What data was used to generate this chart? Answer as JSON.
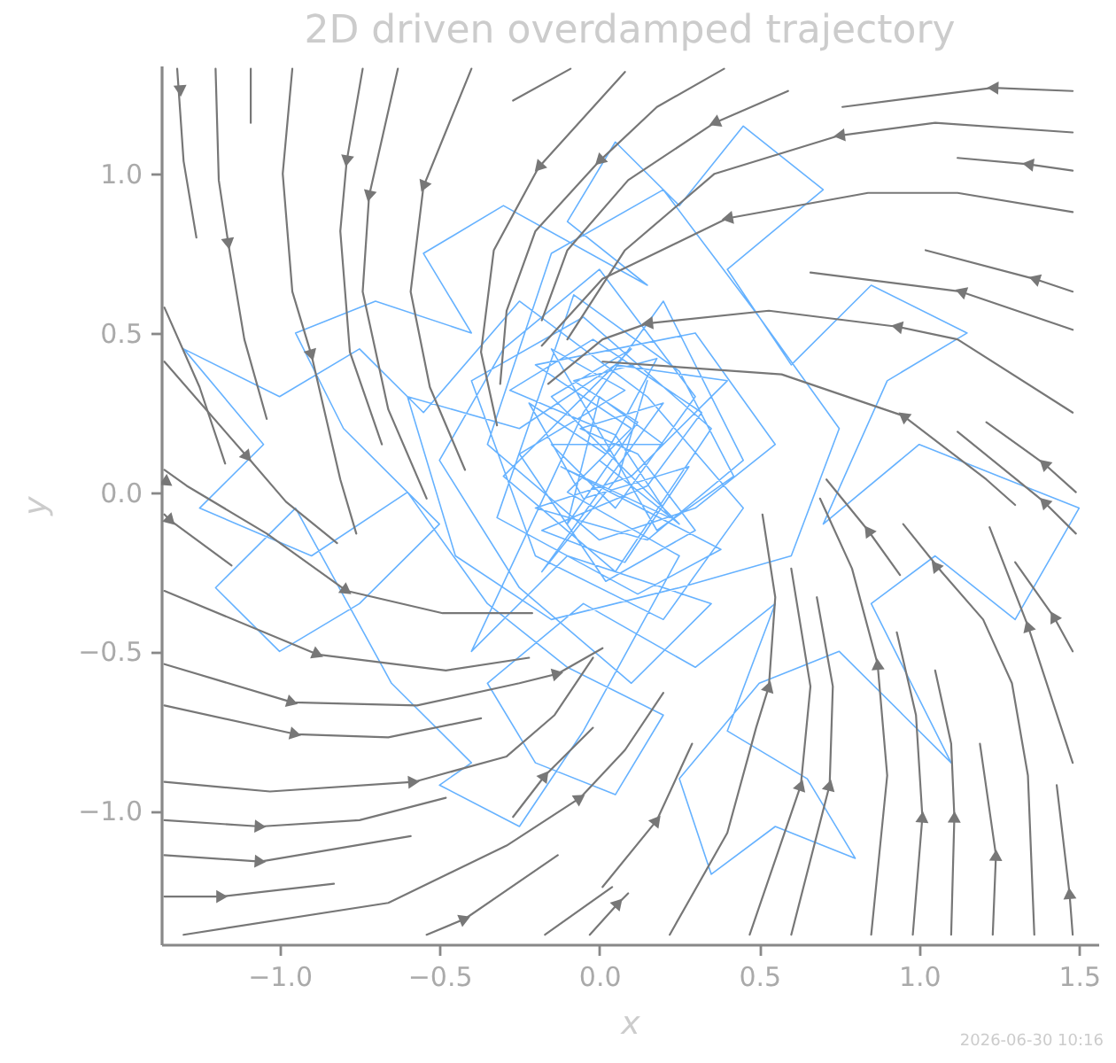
{
  "chart_data": {
    "type": "line",
    "title": "2D driven overdamped trajectory",
    "xlabel": "x",
    "ylabel": "y",
    "annotations": [
      "2026-06-30 10:16"
    ],
    "xlim": [
      -1.37,
      1.56
    ],
    "ylim": [
      -1.42,
      1.34
    ],
    "xticks": [
      {
        "value": -1,
        "label": "−1.0"
      },
      {
        "value": -0.5,
        "label": "−0.5"
      },
      {
        "value": 0,
        "label": "0.0"
      },
      {
        "value": 0.5,
        "label": "0.5"
      },
      {
        "value": 1,
        "label": "1.0"
      },
      {
        "value": 1.5,
        "label": "1.5"
      }
    ],
    "yticks": [
      {
        "value": -1,
        "label": "−1.0"
      },
      {
        "value": -0.5,
        "label": "−0.5"
      },
      {
        "value": 0,
        "label": "0.0"
      },
      {
        "value": 0.5,
        "label": "0.5"
      },
      {
        "value": 1,
        "label": "1.0"
      }
    ],
    "series": [
      {
        "color": "#66b2ff",
        "x": [
          0,
          0.25,
          -0.15,
          0.1,
          -0.3,
          0.05,
          0.35,
          -0.05,
          -0.4,
          -0.2,
          0.2,
          0.45,
          0.15,
          -0.25,
          -0.55,
          -0.75,
          -1,
          -1.3,
          -1.05,
          -1.25,
          -0.9,
          -0.6,
          -0.35,
          -0.1,
          0.2,
          0.05,
          -0.2,
          -0.35,
          -0.05,
          0.3,
          0.55,
          0.4,
          0.65,
          0.8,
          0.55,
          0.35,
          0.25,
          0.5,
          0.75,
          0.95,
          1.1,
          0.85,
          1.05,
          1.3,
          1.5,
          1.25,
          1,
          0.7,
          0.9,
          1.15,
          0.85,
          0.6,
          0.4,
          0.7,
          0.45,
          0.25,
          0.05,
          -0.1,
          0.15,
          -0.3,
          -0.55,
          -0.4,
          -0.7,
          -0.95,
          -0.8,
          -0.5,
          -0.75,
          -1,
          -1.2,
          -0.95,
          -0.65,
          -0.4,
          -0.5,
          -0.25,
          -0.05,
          0.25,
          -0.1,
          0.1,
          -0.2,
          0.3,
          0.55,
          0.3,
          0,
          -0.35,
          -0.15,
          0.2,
          0.5,
          0.75,
          0.6,
          0.25,
          -0.15,
          -0.45,
          -0.6,
          -0.25,
          0.05,
          0.4,
          0.1,
          -0.2,
          0.15,
          0.45,
          0.2,
          -0.05,
          -0.4,
          -0.1,
          0.35,
          0.1,
          -0.25,
          -0.5,
          -0.3,
          0,
          0.3,
          0.05,
          -0.15,
          0.2,
          0,
          -0.1,
          0.12,
          -0.08,
          0.18,
          0.02,
          -0.22,
          -0.05,
          0.28,
          0.08,
          -0.18,
          0.15,
          0.32,
          -0.02,
          -0.28,
          0.05,
          0.22,
          -0.12,
          0.38,
          0.12,
          -0.32,
          -0.08,
          0.25,
          0.42,
          0.18,
          -0.15,
          0.08,
          -0.25,
          0.02,
          0.3,
          0.12,
          -0.06,
          0.2,
          -0.18,
          0.06,
          0.15
        ],
        "values": [
          0.1,
          -0.1,
          0.3,
          0.45,
          0.05,
          -0.25,
          0.2,
          0.55,
          0.35,
          -0.2,
          -0.4,
          -0.05,
          0.3,
          0.6,
          0.25,
          0.45,
          0.3,
          0.45,
          0.15,
          -0.05,
          -0.2,
          0,
          -0.35,
          -0.55,
          -0.7,
          -0.95,
          -0.85,
          -0.6,
          -0.35,
          -0.55,
          -0.35,
          -0.75,
          -0.9,
          -1.15,
          -1.05,
          -1.2,
          -0.9,
          -0.6,
          -0.5,
          -0.7,
          -0.85,
          -0.35,
          -0.2,
          -0.4,
          -0.05,
          0.05,
          0.15,
          -0.1,
          0.35,
          0.5,
          0.65,
          0.4,
          0.7,
          0.95,
          1.15,
          0.9,
          1.1,
          0.85,
          0.65,
          0.9,
          0.75,
          0.5,
          0.6,
          0.5,
          0.2,
          -0.1,
          -0.35,
          -0.5,
          -0.3,
          -0.05,
          -0.6,
          -0.85,
          -0.92,
          -1.05,
          -0.75,
          -0.2,
          0,
          0.2,
          0.4,
          0.5,
          0.15,
          -0.05,
          -0.15,
          0.15,
          0.75,
          0.95,
          0.55,
          0.2,
          -0.2,
          -0.3,
          -0.4,
          -0.2,
          0.3,
          0.2,
          0.4,
          0.35,
          0.05,
          -0.05,
          -0.15,
          0.1,
          0.6,
          0.25,
          -0.5,
          -0.2,
          -0.35,
          -0.6,
          -0.3,
          0.1,
          0.45,
          0.7,
          0.3,
          -0.05,
          0.15,
          0.15,
          0.3,
          -0.1,
          0.22,
          0.35,
          0.42,
          0.12,
          0.28,
          -0.02,
          0.08,
          -0.22,
          -0.12,
          0.02,
          0.25,
          0.48,
          0.32,
          0.18,
          -0.08,
          0.08,
          -0.18,
          -0.32,
          -0.08,
          0.62,
          0.38,
          0.05,
          -0.12,
          0.45,
          0.32,
          0.12,
          -0.28,
          -0.12,
          0.12,
          0.2,
          0.28,
          -0.25,
          0.05,
          0.35
        ]
      },
      {
        "color": "#777777",
        "x": [
          -1.32,
          -1.3,
          -1.26
        ],
        "values": [
          1.33,
          1.04,
          0.8
        ]
      },
      {
        "color": "#777777",
        "x": [
          -1.2,
          -1.19,
          -1.16,
          -1.11,
          -1.04
        ],
        "values": [
          1.33,
          0.98,
          0.78,
          0.48,
          0.23
        ]
      },
      {
        "color": "#777777",
        "x": [
          -1.09,
          -1.09
        ],
        "values": [
          1.33,
          1.16
        ]
      },
      {
        "color": "#777777",
        "x": [
          -0.96,
          -0.99,
          -0.96,
          -0.9,
          -0.81,
          -0.76
        ],
        "values": [
          1.33,
          1,
          0.63,
          0.43,
          0.04,
          -0.13
        ]
      },
      {
        "color": "#777777",
        "x": [
          -0.74,
          -0.79,
          -0.81,
          -0.78,
          -0.68
        ],
        "values": [
          1.33,
          1.04,
          0.82,
          0.44,
          0.15
        ]
      },
      {
        "color": "#777777",
        "x": [
          -0.63,
          -0.72,
          -0.74,
          -0.66,
          -0.54
        ],
        "values": [
          1.33,
          0.93,
          0.63,
          0.26,
          -0.02
        ]
      },
      {
        "color": "#777777",
        "x": [
          -0.4,
          -0.55,
          -0.59,
          -0.53,
          -0.42
        ],
        "values": [
          1.33,
          0.96,
          0.63,
          0.33,
          0.07
        ]
      },
      {
        "color": "#777777",
        "x": [
          -0.09,
          -0.27
        ],
        "values": [
          1.33,
          1.23
        ]
      },
      {
        "color": "#777777",
        "x": [
          0.08,
          -0.19,
          -0.33,
          -0.37,
          -0.32
        ],
        "values": [
          1.32,
          1.02,
          0.76,
          0.44,
          0.21
        ]
      },
      {
        "color": "#777777",
        "x": [
          0.39,
          0.18,
          0,
          -0.2,
          -0.29,
          -0.31
        ],
        "values": [
          1.33,
          1.21,
          1.04,
          0.82,
          0.57,
          0.34
        ]
      },
      {
        "color": "#777777",
        "x": [
          0.59,
          0.36,
          0.09,
          -0.1,
          -0.18
        ],
        "values": [
          1.26,
          1.16,
          0.98,
          0.76,
          0.54
        ]
      },
      {
        "color": "#777777",
        "x": [
          1.48,
          1.23,
          0.76
        ],
        "values": [
          1.26,
          1.27,
          1.21
        ]
      },
      {
        "color": "#777777",
        "x": [
          1.48,
          1.05,
          0.75,
          0.36,
          0.08,
          -0.1
        ],
        "values": [
          1.13,
          1.16,
          1.12,
          1,
          0.76,
          0.48
        ]
      },
      {
        "color": "#777777",
        "x": [
          1.48,
          1.34,
          1.12
        ],
        "values": [
          1.01,
          1.03,
          1.05
        ]
      },
      {
        "color": "#777777",
        "x": [
          1.48,
          1.12,
          0.84,
          0.4,
          0.01,
          -0.18
        ],
        "values": [
          0.88,
          0.94,
          0.94,
          0.86,
          0.67,
          0.46
        ]
      },
      {
        "color": "#777777",
        "x": [
          1.48,
          1.36,
          1.02
        ],
        "values": [
          0.63,
          0.67,
          0.76
        ]
      },
      {
        "color": "#777777",
        "x": [
          1.48,
          1.13,
          0.66
        ],
        "values": [
          0.51,
          0.63,
          0.69
        ]
      },
      {
        "color": "#777777",
        "x": [
          1.48,
          1.12,
          0.93,
          0.53,
          0.15,
          0.01,
          -0.16
        ],
        "values": [
          0.25,
          0.48,
          0.52,
          0.57,
          0.53,
          0.48,
          0.34
        ]
      },
      {
        "color": "#777777",
        "x": [
          1.49,
          1.39,
          1.21
        ],
        "values": [
          0,
          0.09,
          0.22
        ]
      },
      {
        "color": "#777777",
        "x": [
          1.49,
          1.39,
          1.12
        ],
        "values": [
          -0.13,
          -0.03,
          0.19
        ]
      },
      {
        "color": "#777777",
        "x": [
          1.3,
          1.21,
          0.95,
          0.57,
          0.01
        ],
        "values": [
          -0.04,
          0.04,
          0.24,
          0.37,
          0.41
        ]
      },
      {
        "color": "#777777",
        "x": [
          1.36,
          1.34,
          1.29,
          1.2,
          1.07,
          0.95
        ],
        "values": [
          -1.39,
          -0.89,
          -0.6,
          -0.4,
          -0.25,
          -0.1
        ]
      },
      {
        "color": "#777777",
        "x": [
          1.48,
          1.34,
          1.22
        ],
        "values": [
          -0.85,
          -0.42,
          -0.11
        ]
      },
      {
        "color": "#777777",
        "x": [
          0.94,
          0.84,
          0.71
        ],
        "values": [
          -0.26,
          -0.12,
          0.04
        ]
      },
      {
        "color": "#777777",
        "x": [
          1.48,
          1.42,
          1.3
        ],
        "values": [
          -0.5,
          -0.39,
          -0.22
        ]
      },
      {
        "color": "#777777",
        "x": [
          1.48,
          1.47,
          1.43
        ],
        "values": [
          -1.39,
          -1.26,
          -0.92
        ]
      },
      {
        "color": "#777777",
        "x": [
          1.23,
          1.24,
          1.19
        ],
        "values": [
          -1.39,
          -1.14,
          -0.79
        ]
      },
      {
        "color": "#777777",
        "x": [
          1.1,
          1.11,
          1.1,
          1.05
        ],
        "values": [
          -1.39,
          -1.02,
          -0.79,
          -0.56
        ]
      },
      {
        "color": "#777777",
        "x": [
          0.98,
          1.01,
          0.99,
          0.93
        ],
        "values": [
          -1.39,
          -1.02,
          -0.7,
          -0.44
        ]
      },
      {
        "color": "#777777",
        "x": [
          0.85,
          0.9,
          0.87,
          0.79,
          0.69
        ],
        "values": [
          -1.39,
          -0.89,
          -0.54,
          -0.24,
          -0.02
        ]
      },
      {
        "color": "#777777",
        "x": [
          0.6,
          0.72,
          0.73,
          0.68
        ],
        "values": [
          -1.39,
          -0.92,
          -0.61,
          -0.33
        ]
      },
      {
        "color": "#777777",
        "x": [
          0.47,
          0.63,
          0.66,
          0.6
        ],
        "values": [
          -1.39,
          -0.92,
          -0.61,
          -0.24
        ]
      },
      {
        "color": "#777777",
        "x": [
          0.22,
          0.4,
          0.49,
          0.53,
          0.55,
          0.51
        ],
        "values": [
          -1.39,
          -1.07,
          -0.74,
          -0.61,
          -0.33,
          -0.07
        ]
      },
      {
        "color": "#777777",
        "x": [
          0.01,
          0.18,
          0.29
        ],
        "values": [
          -1.24,
          -1.03,
          -0.79
        ]
      },
      {
        "color": "#777777",
        "x": [
          -0.03,
          0.06,
          0.09
        ],
        "values": [
          -1.39,
          -1.29,
          -1.26
        ]
      },
      {
        "color": "#777777",
        "x": [
          -0.17,
          0.04
        ],
        "values": [
          -1.39,
          -1.24
        ]
      },
      {
        "color": "#777777",
        "x": [
          -0.54,
          -0.42,
          -0.13
        ],
        "values": [
          -1.39,
          -1.34,
          -1.14
        ]
      },
      {
        "color": "#777777",
        "x": [
          -1.3,
          -0.66,
          -0.29,
          -0.06,
          0.08,
          0.2
        ],
        "values": [
          -1.39,
          -1.29,
          -1.11,
          -0.96,
          -0.81,
          -0.63
        ]
      },
      {
        "color": "#777777",
        "x": [
          -0.27,
          -0.17,
          -0.02
        ],
        "values": [
          -1.02,
          -0.89,
          -0.74
        ]
      },
      {
        "color": "#777777",
        "x": [
          -1.36,
          -1.18,
          -0.83
        ],
        "values": [
          -1.27,
          -1.27,
          -1.23
        ]
      },
      {
        "color": "#777777",
        "x": [
          -1.36,
          -1.06,
          -0.59
        ],
        "values": [
          -1.14,
          -1.16,
          -1.08
        ]
      },
      {
        "color": "#777777",
        "x": [
          -1.36,
          -1.06,
          -0.75,
          -0.48
        ],
        "values": [
          -1.03,
          -1.05,
          -1.03,
          -0.96
        ]
      },
      {
        "color": "#777777",
        "x": [
          -1.36,
          -1.03,
          -0.58,
          -0.29,
          -0.14,
          -0.02
        ],
        "values": [
          -0.91,
          -0.94,
          -0.91,
          -0.83,
          -0.7,
          -0.52
        ]
      },
      {
        "color": "#777777",
        "x": [
          -1.36,
          -0.95,
          -0.66,
          -0.37
        ],
        "values": [
          -0.67,
          -0.76,
          -0.77,
          -0.71
        ]
      },
      {
        "color": "#777777",
        "x": [
          -1.36,
          -0.96,
          -0.57,
          -0.25,
          -0.13,
          0.01
        ],
        "values": [
          -0.54,
          -0.66,
          -0.67,
          -0.6,
          -0.57,
          -0.49
        ]
      },
      {
        "color": "#777777",
        "x": [
          -1.36,
          -0.88,
          -0.48,
          -0.22
        ],
        "values": [
          -0.31,
          -0.51,
          -0.56,
          -0.52
        ]
      },
      {
        "color": "#777777",
        "x": [
          -1.36,
          -1.34,
          -1.15
        ],
        "values": [
          -0.07,
          -0.09,
          -0.23
        ]
      },
      {
        "color": "#777777",
        "x": [
          -1.36,
          -1.29,
          -1.04,
          -0.79,
          -0.49,
          -0.21
        ],
        "values": [
          0.07,
          0.02,
          -0.13,
          -0.31,
          -0.38,
          -0.38
        ]
      },
      {
        "color": "#777777",
        "x": [
          -1.36,
          -1.25,
          -1.17
        ],
        "values": [
          0.58,
          0.33,
          0.09
        ]
      },
      {
        "color": "#777777",
        "x": [
          -1.36,
          -1.1,
          -0.98,
          -0.82
        ],
        "values": [
          0.41,
          0.11,
          -0.03,
          -0.16
        ]
      },
      {
        "type": "scatter",
        "marker": "triangle",
        "color": "#777777",
        "x": [
          -1.31,
          -1.16,
          -1.1,
          -1.35,
          -1.34,
          -0.79,
          -0.88,
          -0.96,
          -0.95,
          -0.58,
          -1.06,
          -1.06,
          -1.18,
          -0.42,
          0.06,
          -0.17,
          -0.06,
          0.18,
          0.53,
          0.63,
          0.72,
          0.87,
          1.01,
          1.11,
          1.24,
          1.47,
          1.34,
          1.42,
          1.05,
          0.84,
          1.39,
          1.39,
          0.95,
          0.93,
          0.15,
          1.13,
          1.36,
          0.4,
          1.34,
          0.75,
          1.23,
          0.36,
          0,
          -0.19,
          -0.55,
          -0.72,
          -0.79,
          -0.9,
          -0.13
        ],
        "values": [
          1.26,
          0.78,
          0.11,
          0.03,
          -0.09,
          -0.31,
          -0.51,
          -0.66,
          -0.76,
          -0.91,
          -1.05,
          -1.16,
          -1.27,
          -1.34,
          -1.29,
          -0.89,
          -0.96,
          -1.03,
          -0.61,
          -0.92,
          -0.92,
          -0.54,
          -1.02,
          -1.02,
          -1.14,
          -1.26,
          -0.42,
          -0.39,
          -0.23,
          -0.12,
          -0.03,
          0.09,
          0.24,
          0.52,
          0.53,
          0.63,
          0.67,
          0.86,
          1.03,
          1.12,
          1.27,
          1.16,
          1.04,
          1.02,
          0.96,
          0.93,
          1.04,
          0.43,
          -0.57
        ]
      }
    ]
  }
}
